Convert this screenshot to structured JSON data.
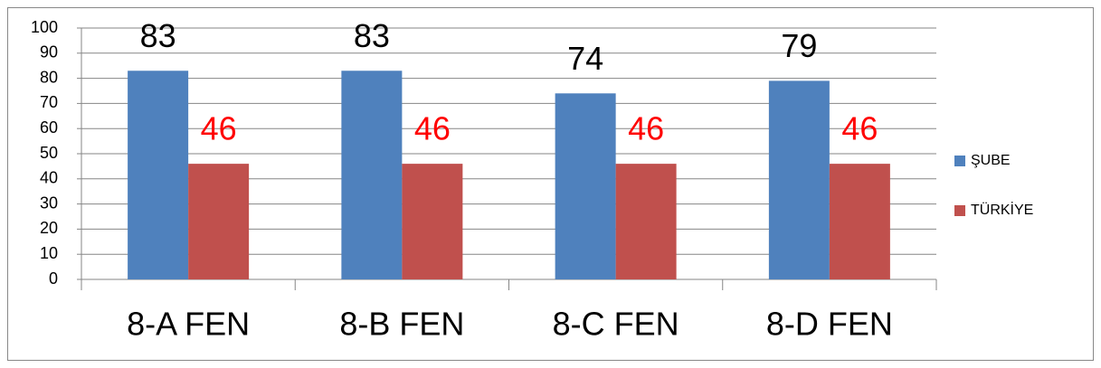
{
  "chart_data": {
    "type": "bar",
    "categories": [
      "8-A FEN",
      "8-B FEN",
      "8-C FEN",
      "8-D FEN"
    ],
    "series": [
      {
        "name": "ŞUBE",
        "color": "#4f81bd",
        "label_color": "#000000",
        "values": [
          83,
          83,
          74,
          79
        ]
      },
      {
        "name": "TÜRKİYE",
        "color": "#c0504d",
        "label_color": "#ff0000",
        "values": [
          46,
          46,
          46,
          46
        ]
      }
    ],
    "ylim": [
      0,
      100
    ],
    "yticks": [
      0,
      10,
      20,
      30,
      40,
      50,
      60,
      70,
      80,
      90,
      100
    ],
    "grid": true,
    "legend": "right"
  }
}
